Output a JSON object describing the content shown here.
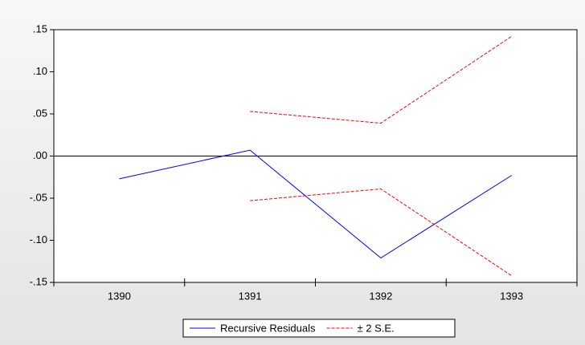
{
  "chart_data": {
    "type": "line",
    "categories": [
      "1390",
      "1391",
      "1392",
      "1393"
    ],
    "series": [
      {
        "name": "Recursive Residuals",
        "color": "#0000ff",
        "values": [
          -0.027,
          0.007,
          -0.121,
          -0.023
        ]
      },
      {
        "name": "± 2 S.E.",
        "color": "#ff0000",
        "dashed": true,
        "values": [
          null,
          0.053,
          0.039,
          0.142
        ],
        "lower": [
          null,
          -0.053,
          -0.039,
          -0.142
        ]
      }
    ],
    "ylim": [
      -0.15,
      0.15
    ],
    "yticks": [
      {
        "value": -0.15,
        "label": "-.15"
      },
      {
        "value": -0.1,
        "label": "-.10"
      },
      {
        "value": -0.05,
        "label": "-.05"
      },
      {
        "value": 0,
        "label": ".00"
      },
      {
        "value": 0.05,
        "label": ".05"
      },
      {
        "value": 0.1,
        "label": ".10"
      },
      {
        "value": 0.15,
        "label": ".15"
      }
    ],
    "zero_line": true,
    "legend": "bottom"
  }
}
